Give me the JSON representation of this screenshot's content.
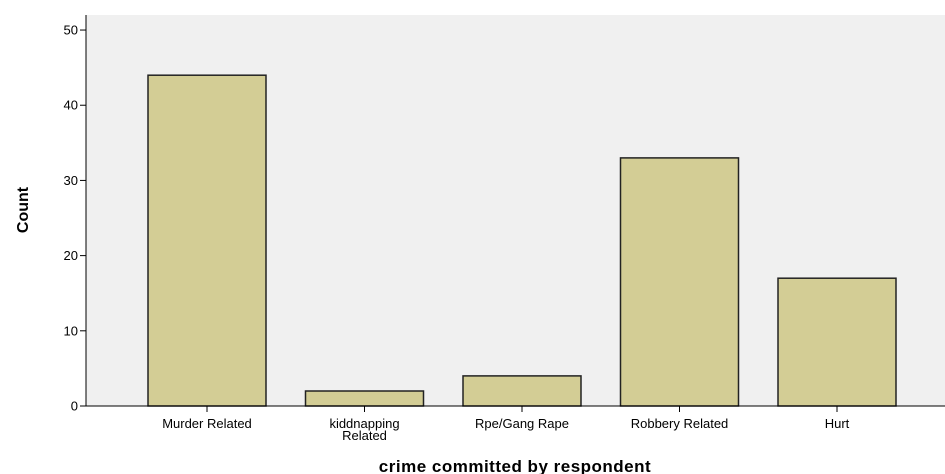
{
  "chart_data": {
    "type": "bar",
    "categories": [
      "Murder Related",
      "kiddnapping Related",
      "Rpe/Gang Rape",
      "Robbery Related",
      "Hurt"
    ],
    "category_label_lines": [
      [
        "Murder Related"
      ],
      [
        "kiddnapping",
        "Related"
      ],
      [
        "Rpe/Gang Rape"
      ],
      [
        "Robbery Related"
      ],
      [
        "Hurt"
      ]
    ],
    "values": [
      44,
      2,
      4,
      33,
      17
    ],
    "xlabel": "crime committed by respondent",
    "ylabel": "Count",
    "ylim": [
      0,
      52
    ],
    "yticks": [
      0,
      10,
      20,
      30,
      40,
      50
    ],
    "grid": false,
    "colors": {
      "bar_fill": "#d3cd95",
      "bar_stroke": "#222222",
      "plot_background": "#f0f0f0",
      "axis": "#000000"
    }
  }
}
